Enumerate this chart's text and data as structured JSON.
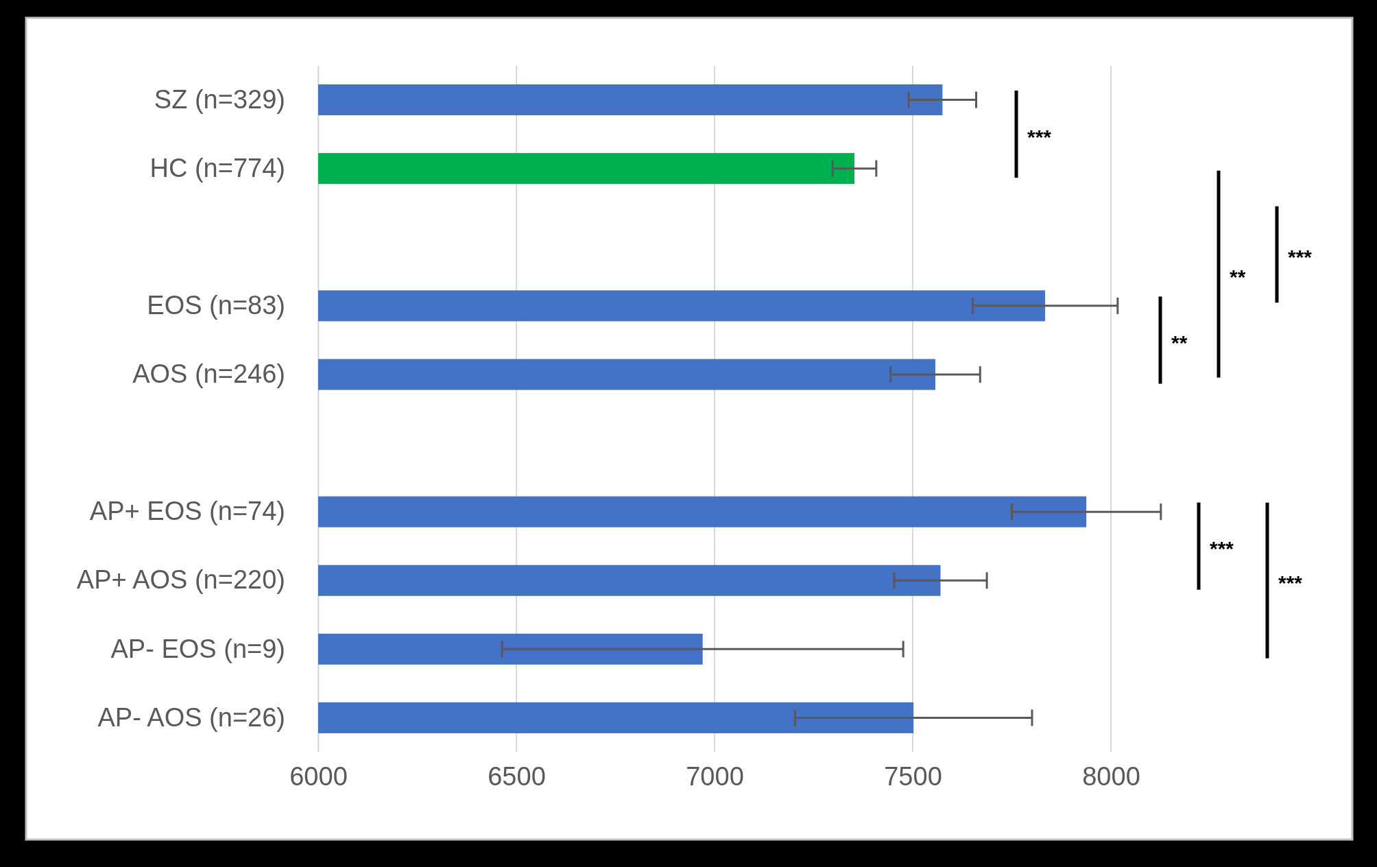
{
  "chart_data": {
    "type": "bar",
    "orientation": "horizontal",
    "categories": [
      "SZ (n=329)",
      "HC (n=774)",
      null,
      "EOS (n=83)",
      "AOS (n=246)",
      null,
      "AP+ EOS (n=74)",
      "AP+ AOS (n=220)",
      "AP- EOS (n=9)",
      "AP- AOS (n=26)"
    ],
    "values": [
      7575,
      7353,
      null,
      7834,
      7557,
      null,
      7938,
      7570,
      6970,
      7502
    ],
    "errors": [
      85,
      55,
      null,
      183,
      113,
      null,
      188,
      117,
      506,
      299
    ],
    "colors": [
      "#4472c4",
      "#00b050",
      null,
      "#4472c4",
      "#4472c4",
      null,
      "#4472c4",
      "#4472c4",
      "#4472c4",
      "#4472c4"
    ],
    "xlim": [
      6000,
      8000
    ],
    "xticks": [
      6000,
      6500,
      7000,
      7500,
      8000
    ],
    "grid": "x",
    "annotations": [
      "***",
      "**",
      "**",
      "***",
      "***",
      "***"
    ]
  }
}
